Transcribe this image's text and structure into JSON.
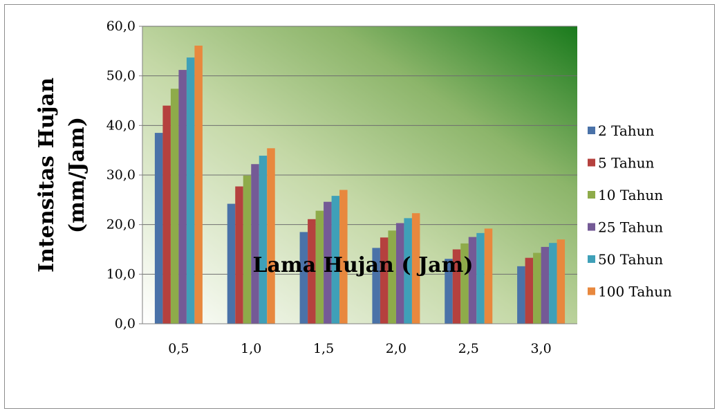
{
  "chart_data": {
    "type": "bar",
    "categories": [
      "0,5",
      "1,0",
      "1,5",
      "2,0",
      "2,5",
      "3,0"
    ],
    "series": [
      {
        "name": "2 Tahun",
        "color": "#4a72a8",
        "values": [
          38.5,
          24.2,
          18.5,
          15.3,
          13.1,
          11.6
        ]
      },
      {
        "name": "5 Tahun",
        "color": "#b5413e",
        "values": [
          44.0,
          27.7,
          21.1,
          17.4,
          15.0,
          13.3
        ]
      },
      {
        "name": "10 Tahun",
        "color": "#8eab4a",
        "values": [
          47.4,
          29.9,
          22.8,
          18.8,
          16.2,
          14.3
        ]
      },
      {
        "name": "25 Tahun",
        "color": "#745a96",
        "values": [
          51.2,
          32.2,
          24.6,
          20.3,
          17.5,
          15.5
        ]
      },
      {
        "name": "50 Tahun",
        "color": "#3fa0b8",
        "values": [
          53.7,
          33.9,
          25.8,
          21.3,
          18.3,
          16.3
        ]
      },
      {
        "name": "100 Tahun",
        "color": "#e8883e",
        "values": [
          56.1,
          35.4,
          27.0,
          22.3,
          19.2,
          17.0
        ]
      }
    ],
    "y_ticks": [
      "0,0",
      "10,0",
      "20,0",
      "30,0",
      "40,0",
      "50,0",
      "60,0"
    ],
    "ylim": [
      0,
      60
    ],
    "xlabel": "Lama Hujan ( Jam)",
    "ylabel_line1": "Intensitas Hujan",
    "ylabel_line2": "(mm/Jam)",
    "grid": true,
    "legend_position": "right",
    "plot_background": "gradient light (bottom-left) to dark green (top-right)"
  }
}
